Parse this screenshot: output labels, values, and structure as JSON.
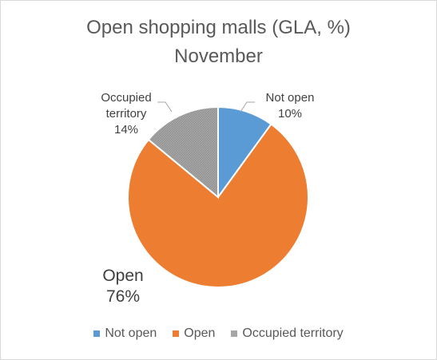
{
  "chart_data": {
    "type": "pie",
    "title_lines": [
      "Open shopping malls (GLA, %)",
      "November"
    ],
    "categories": [
      "Not open",
      "Open",
      "Occupied territory"
    ],
    "values": [
      10,
      76,
      14
    ],
    "data_labels": [
      {
        "lines": [
          "Not open",
          "10%"
        ]
      },
      {
        "lines": [
          "Open",
          "76%"
        ]
      },
      {
        "lines": [
          "Occupied",
          "territory",
          "14%"
        ]
      }
    ],
    "colors": [
      "#5b9bd5",
      "#ed7d31",
      "#a5a5a5"
    ],
    "legend_position": "bottom"
  }
}
